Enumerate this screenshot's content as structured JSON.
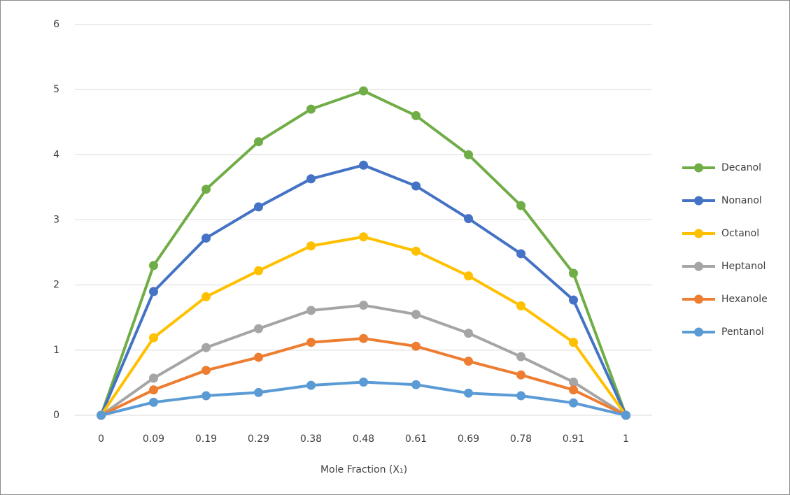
{
  "chart_data": {
    "type": "line",
    "x_label": "Mole Fraction (X₁)",
    "categories": [
      "0",
      "0.09",
      "0.19",
      "0.29",
      "0.38",
      "0.48",
      "0.61",
      "0.69",
      "0.78",
      "0.91",
      "1"
    ],
    "series": [
      {
        "name": "Decanol",
        "color": "#70ad47",
        "values": [
          0,
          2.3,
          3.47,
          4.2,
          4.7,
          4.98,
          4.6,
          4.0,
          3.22,
          2.18,
          0
        ]
      },
      {
        "name": "Nonanol",
        "color": "#4472c4",
        "values": [
          0,
          1.9,
          2.72,
          3.2,
          3.63,
          3.84,
          3.52,
          3.02,
          2.48,
          1.77,
          0
        ]
      },
      {
        "name": "Octanol",
        "color": "#ffc000",
        "values": [
          0,
          1.19,
          1.82,
          2.22,
          2.6,
          2.74,
          2.52,
          2.14,
          1.68,
          1.12,
          0
        ]
      },
      {
        "name": "Heptanol",
        "color": "#a5a5a5",
        "values": [
          0,
          0.57,
          1.04,
          1.33,
          1.61,
          1.69,
          1.55,
          1.26,
          0.9,
          0.51,
          0
        ]
      },
      {
        "name": "Hexanole",
        "color": "#ed7d31",
        "values": [
          0,
          0.39,
          0.69,
          0.89,
          1.12,
          1.18,
          1.06,
          0.83,
          0.62,
          0.39,
          0
        ]
      },
      {
        "name": "Pentanol",
        "color": "#5b9bd5",
        "values": [
          0,
          0.2,
          0.3,
          0.35,
          0.46,
          0.51,
          0.47,
          0.34,
          0.3,
          0.19,
          0
        ]
      }
    ],
    "ylim": [
      0,
      6
    ],
    "yticks": [
      0,
      1,
      2,
      3,
      4,
      5,
      6
    ],
    "grid": true,
    "legend": "right"
  }
}
